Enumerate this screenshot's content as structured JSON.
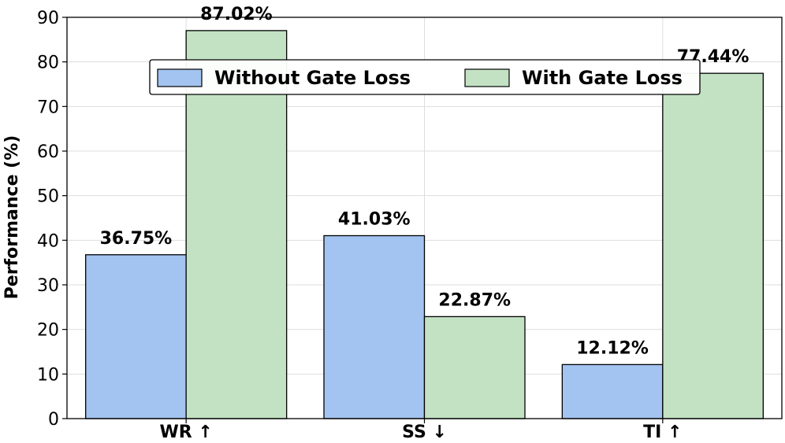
{
  "chart_data": {
    "type": "bar",
    "title": "",
    "xlabel": "",
    "ylabel": "Performance (%)",
    "ylim": [
      0,
      90
    ],
    "yticks": [
      "0",
      "10",
      "20",
      "30",
      "40",
      "50",
      "60",
      "70",
      "80",
      "90"
    ],
    "grid": true,
    "legend_position": "top-center",
    "categories": [
      "WR ↑",
      "SS ↓",
      "TI ↑"
    ],
    "series": [
      {
        "name": "Without Gate Loss",
        "color": "#a3c3f0",
        "values": [
          36.75,
          41.03,
          12.12
        ],
        "labels": [
          "36.75%",
          "41.03%",
          "12.12%"
        ]
      },
      {
        "name": "With Gate Loss",
        "color": "#c3e2c3",
        "values": [
          87.02,
          22.87,
          77.44
        ],
        "labels": [
          "87.02%",
          "22.87%",
          "77.44%"
        ]
      }
    ]
  }
}
